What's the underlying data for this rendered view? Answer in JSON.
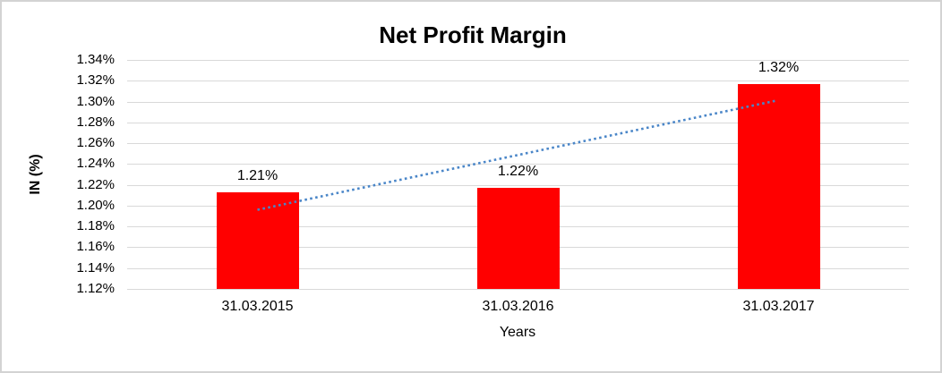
{
  "chart_data": {
    "type": "bar",
    "title": "Net Profit Margin",
    "ylabel": "IN (%)",
    "xlabel": "Years",
    "categories": [
      "31.03.2015",
      "31.03.2016",
      "31.03.2017"
    ],
    "values": [
      1.213,
      1.217,
      1.317
    ],
    "data_labels": [
      "1.21%",
      "1.22%",
      "1.32%"
    ],
    "ylim": [
      1.12,
      1.34
    ],
    "y_tick_step": 0.02,
    "y_tick_labels": [
      "1.12%",
      "1.14%",
      "1.16%",
      "1.18%",
      "1.20%",
      "1.22%",
      "1.24%",
      "1.26%",
      "1.28%",
      "1.30%",
      "1.32%",
      "1.34%"
    ],
    "grid": true,
    "legend": "none",
    "bar_color": "#ff0000",
    "gridline_color": "#d9d9d9",
    "trendline": {
      "style": "dotted",
      "color": "#4a86c8",
      "start_value": 1.196,
      "end_value": 1.301
    }
  }
}
